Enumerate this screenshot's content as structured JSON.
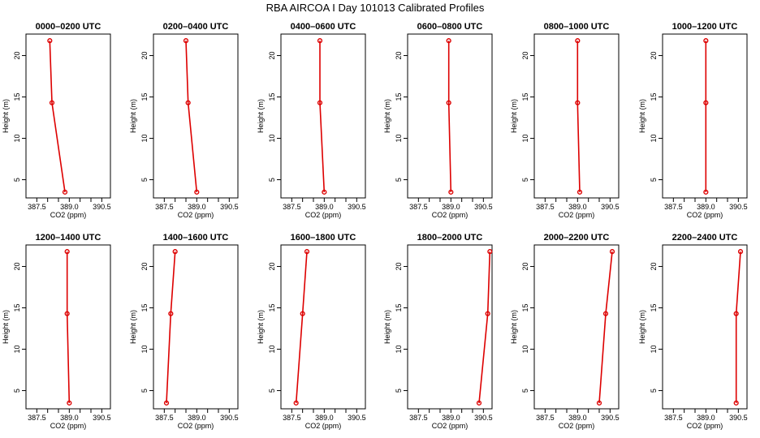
{
  "title": "RBA AIRCOA I  Day 101013  Calibrated Profiles",
  "colors": {
    "line": "#dd0000",
    "axis": "#000000",
    "background": "#ffffff"
  },
  "chart_data": {
    "type": "line",
    "layout": "2 rows x 6 panels",
    "xlabel": "CO2 (ppm)",
    "ylabel": "Height (m)",
    "xlim": [
      387.0,
      390.9
    ],
    "ylim": [
      2.8,
      22.6
    ],
    "xticks": [
      387.5,
      388.0,
      388.5,
      389.0,
      389.5,
      390.0,
      390.5
    ],
    "xtick_labels": [
      "387.5",
      "",
      "",
      "389.0",
      "",
      "",
      "390.5"
    ],
    "yticks": [
      5,
      10,
      15,
      20
    ],
    "ytick_labels": [
      "5",
      "10",
      "15",
      "20"
    ],
    "heights": [
      3.5,
      14.3,
      21.8
    ],
    "grid": false,
    "panels": [
      {
        "title": "0000–0200 UTC",
        "x": [
          388.8,
          388.2,
          388.1
        ]
      },
      {
        "title": "0200–0400 UTC",
        "x": [
          389.0,
          388.6,
          388.5
        ]
      },
      {
        "title": "0400–0600 UTC",
        "x": [
          389.0,
          388.8,
          388.8
        ]
      },
      {
        "title": "0600–0800 UTC",
        "x": [
          389.0,
          388.9,
          388.9
        ]
      },
      {
        "title": "0800–1000 UTC",
        "x": [
          389.1,
          389.0,
          389.0
        ]
      },
      {
        "title": "1000–1200 UTC",
        "x": [
          389.0,
          389.0,
          389.0
        ]
      },
      {
        "title": "1200–1400 UTC",
        "x": [
          389.0,
          388.9,
          388.9
        ]
      },
      {
        "title": "1400–1600 UTC",
        "x": [
          387.6,
          387.8,
          388.0
        ]
      },
      {
        "title": "1600–1800 UTC",
        "x": [
          387.7,
          388.0,
          388.2
        ]
      },
      {
        "title": "1800–2000 UTC",
        "x": [
          390.3,
          390.7,
          390.8
        ]
      },
      {
        "title": "2000–2200 UTC",
        "x": [
          390.0,
          390.3,
          390.6
        ]
      },
      {
        "title": "2200–2400 UTC",
        "x": [
          390.4,
          390.4,
          390.6
        ]
      }
    ]
  }
}
